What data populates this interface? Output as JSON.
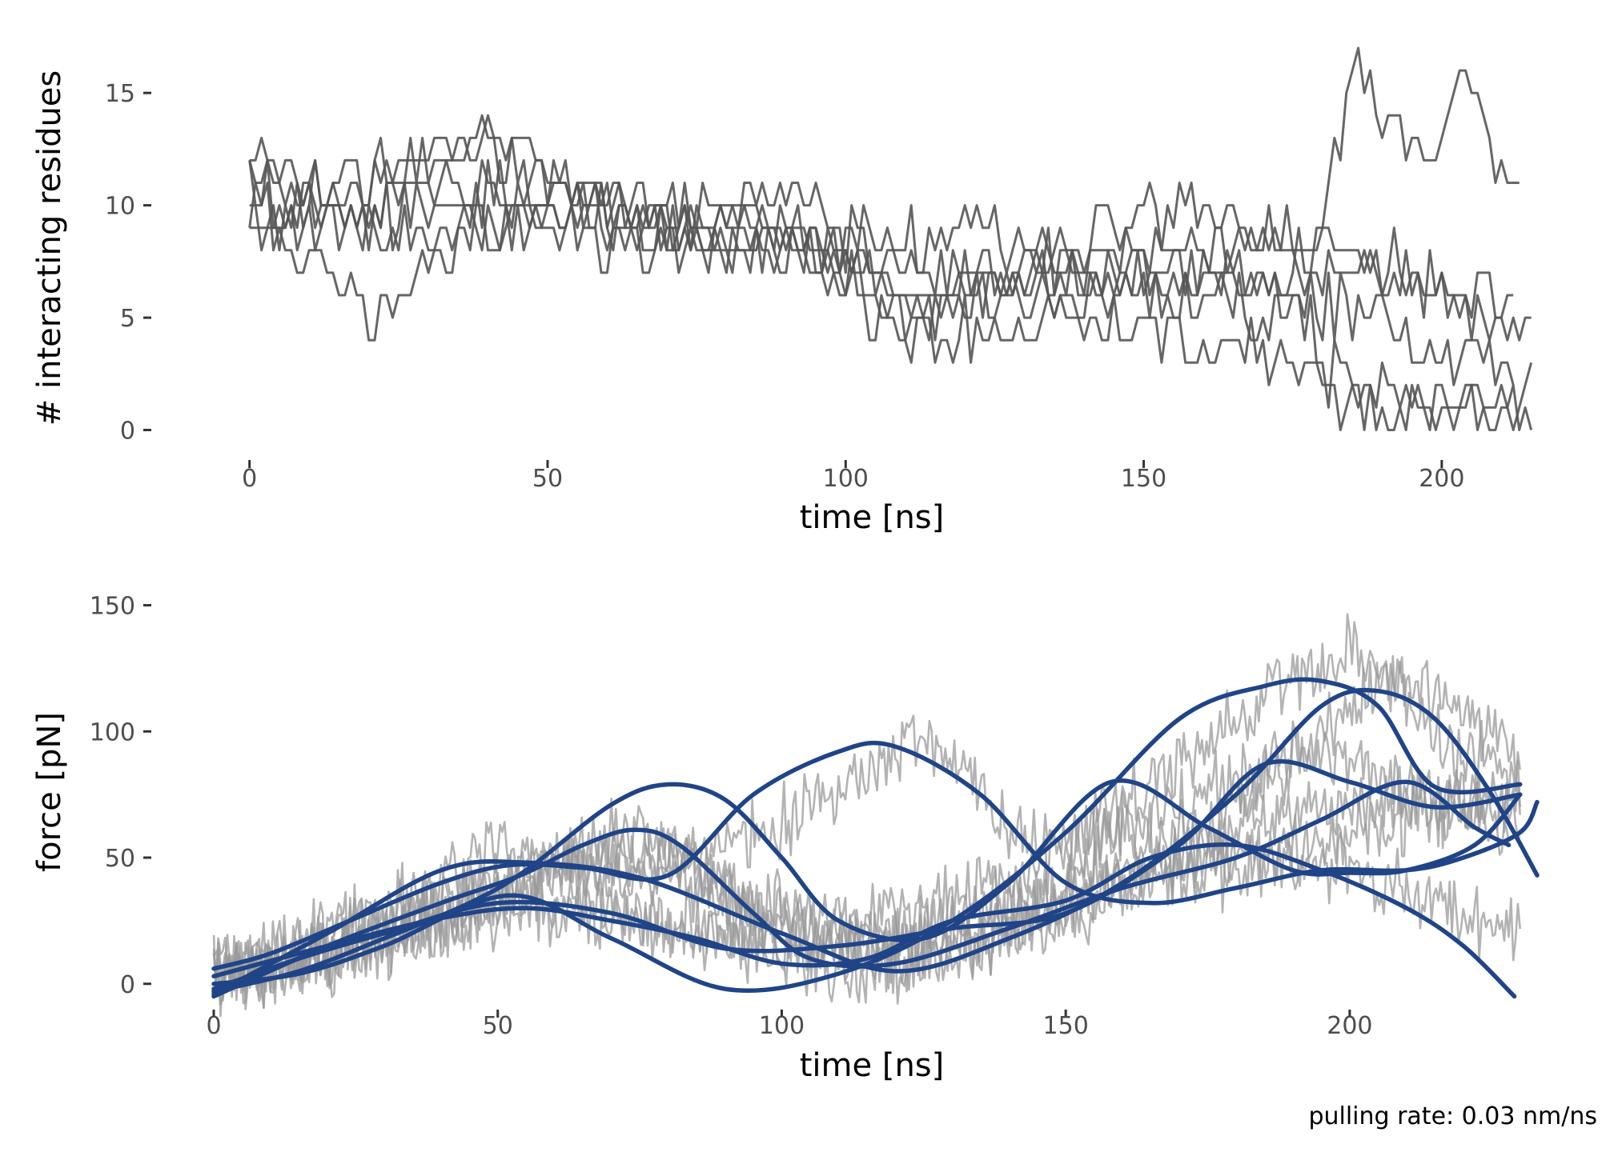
{
  "caption": "pulling rate: 0.03 nm/ns",
  "colors": {
    "trace": "#555555",
    "raw_force": "#999999",
    "smooth_force": "#1f4488",
    "tick_text": "#4d4d4d"
  },
  "chart_data": [
    {
      "type": "line",
      "title": "",
      "xlabel": "time [ns]",
      "ylabel": "# interacting residues",
      "xlim": [
        -6,
        216
      ],
      "ylim": [
        -0.8,
        17
      ],
      "xticks": [
        0,
        50,
        100,
        150,
        200
      ],
      "yticks": [
        0,
        5,
        10,
        15
      ],
      "xtick_labels": [
        "0",
        "50",
        "100",
        "150",
        "200"
      ],
      "ytick_labels": [
        "0",
        "5",
        "10",
        "15"
      ],
      "grid": false,
      "legend": "none",
      "series": [
        {
          "x": [
            0,
            20,
            40,
            60,
            80,
            100,
            110,
            130,
            150,
            170,
            180,
            190,
            200,
            212
          ],
          "y": [
            9,
            11,
            13,
            9,
            8,
            7,
            5,
            6,
            7,
            7,
            6,
            5,
            3,
            3
          ]
        },
        {
          "x": [
            0,
            10,
            30,
            50,
            70,
            90,
            110,
            130,
            150,
            170,
            180,
            190,
            200,
            215
          ],
          "y": [
            10,
            9,
            10,
            11,
            10,
            9,
            7,
            7,
            8,
            8,
            7,
            7,
            6,
            4
          ]
        },
        {
          "x": [
            0,
            10,
            20,
            40,
            60,
            80,
            100,
            120,
            140,
            160,
            175,
            180,
            200,
            215
          ],
          "y": [
            11,
            7,
            5,
            9,
            10,
            8,
            8,
            9,
            7,
            6,
            6,
            3,
            1,
            1
          ]
        },
        {
          "x": [
            0,
            15,
            30,
            50,
            70,
            90,
            110,
            130,
            150,
            170,
            180,
            185,
            195,
            205,
            213
          ],
          "y": [
            12,
            10,
            8,
            10,
            9,
            11,
            6,
            7,
            6,
            5,
            9,
            17,
            11,
            15,
            10
          ]
        },
        {
          "x": [
            0,
            15,
            30,
            50,
            70,
            90,
            105,
            115,
            135,
            155,
            175,
            180,
            195,
            210,
            215
          ],
          "y": [
            10,
            11,
            12,
            9,
            8,
            10,
            5,
            4,
            5,
            4,
            3,
            2,
            1,
            1,
            0
          ]
        },
        {
          "x": [
            0,
            20,
            40,
            60,
            80,
            100,
            110,
            130,
            150,
            170,
            185,
            200,
            212
          ],
          "y": [
            11,
            9,
            13,
            10,
            9,
            8,
            5,
            7,
            10,
            9,
            8,
            6,
            6
          ]
        }
      ]
    },
    {
      "type": "line",
      "title": "",
      "xlabel": "time [ns]",
      "ylabel": "force [pN]",
      "xlim": [
        0,
        233
      ],
      "ylim": [
        -8,
        160
      ],
      "xticks": [
        0,
        50,
        100,
        150,
        200
      ],
      "yticks": [
        0,
        50,
        100,
        150
      ],
      "xtick_labels": [
        "0",
        "50",
        "100",
        "150",
        "200"
      ],
      "ytick_labels": [
        "0",
        "50",
        "100",
        "150"
      ],
      "grid": false,
      "legend": "none",
      "series": [
        {
          "x": [
            0,
            15,
            30,
            45,
            55,
            65,
            75,
            80,
            90,
            105,
            120,
            135,
            150,
            160,
            175,
            190,
            200,
            215,
            230
          ],
          "y": [
            5,
            8,
            18,
            28,
            40,
            52,
            60,
            57,
            35,
            15,
            15,
            22,
            32,
            42,
            55,
            68,
            72,
            70,
            75
          ]
        },
        {
          "x": [
            0,
            10,
            20,
            30,
            40,
            50,
            60,
            70,
            80,
            90,
            100,
            120,
            140,
            155,
            170,
            185,
            200,
            215,
            228
          ],
          "y": [
            5,
            10,
            20,
            28,
            35,
            42,
            48,
            45,
            42,
            35,
            25,
            25,
            42,
            55,
            70,
            85,
            88,
            70,
            60
          ]
        },
        {
          "x": [
            0,
            15,
            30,
            45,
            55,
            65,
            80,
            100,
            120,
            140,
            150,
            160,
            175,
            185,
            195,
            205,
            215,
            230
          ],
          "y": [
            5,
            6,
            15,
            30,
            40,
            50,
            52,
            30,
            10,
            20,
            45,
            60,
            60,
            80,
            100,
            120,
            118,
            90
          ]
        },
        {
          "x": [
            0,
            20,
            40,
            55,
            70,
            90,
            110,
            130,
            150,
            160,
            180,
            195,
            210,
            220,
            230
          ],
          "y": [
            3,
            10,
            28,
            35,
            28,
            15,
            5,
            10,
            25,
            40,
            48,
            55,
            65,
            75,
            68
          ]
        },
        {
          "x": [
            0,
            20,
            40,
            60,
            80,
            100,
            120,
            140,
            160,
            180,
            190,
            200,
            215,
            230
          ],
          "y": [
            2,
            12,
            22,
            30,
            25,
            15,
            20,
            30,
            45,
            45,
            48,
            45,
            35,
            15
          ]
        },
        {
          "x": [
            0,
            20,
            40,
            55,
            70,
            90,
            110,
            125,
            140,
            150,
            165,
            185,
            200,
            215,
            230
          ],
          "y": [
            4,
            18,
            40,
            55,
            45,
            55,
            75,
            100,
            60,
            55,
            80,
            110,
            135,
            100,
            80
          ]
        }
      ],
      "smooth_series": [
        {
          "x": [
            0,
            20,
            40,
            54,
            65,
            74,
            82,
            95,
            105,
            120,
            140,
            160,
            180,
            195,
            210,
            222,
            228
          ],
          "y": [
            -5,
            15,
            32,
            43,
            55,
            61,
            55,
            28,
            10,
            8,
            22,
            38,
            50,
            65,
            80,
            62,
            55
          ]
        },
        {
          "x": [
            0,
            15,
            30,
            45,
            55,
            70,
            80,
            90,
            100,
            110,
            125,
            140,
            158,
            175,
            190,
            200,
            210,
            222,
            230
          ],
          "y": [
            -3,
            5,
            18,
            32,
            45,
            71,
            79,
            73,
            50,
            25,
            18,
            40,
            80,
            62,
            45,
            44,
            45,
            55,
            75
          ]
        },
        {
          "x": [
            0,
            10,
            25,
            40,
            52,
            65,
            80,
            95,
            110,
            120,
            135,
            150,
            165,
            180,
            195,
            210,
            220,
            230,
            233
          ],
          "y": [
            6,
            12,
            26,
            40,
            47,
            46,
            43,
            75,
            92,
            94,
            75,
            40,
            32,
            38,
            45,
            45,
            50,
            60,
            72
          ]
        },
        {
          "x": [
            0,
            20,
            40,
            55,
            75,
            100,
            120,
            140,
            160,
            180,
            195,
            205,
            215,
            225,
            233
          ],
          "y": [
            -4,
            20,
            45,
            48,
            42,
            20,
            5,
            18,
            40,
            75,
            110,
            116,
            105,
            75,
            43
          ]
        },
        {
          "x": [
            0,
            15,
            30,
            50,
            70,
            90,
            110,
            130,
            150,
            170,
            185,
            200,
            215,
            230
          ],
          "y": [
            -2,
            10,
            20,
            32,
            28,
            14,
            15,
            22,
            28,
            55,
            87,
            80,
            70,
            75
          ]
        },
        {
          "x": [
            0,
            15,
            30,
            52,
            70,
            90,
            110,
            130,
            150,
            170,
            185,
            195,
            205,
            215,
            230
          ],
          "y": [
            0,
            4,
            15,
            35,
            18,
            -2,
            4,
            25,
            60,
            105,
            118,
            120,
            110,
            78,
            79
          ]
        },
        {
          "x": [
            0,
            20,
            40,
            55,
            70,
            85,
            100,
            115,
            130,
            150,
            165,
            180,
            195,
            210,
            220,
            229
          ],
          "y": [
            3,
            15,
            26,
            30,
            25,
            18,
            8,
            10,
            25,
            33,
            50,
            55,
            45,
            30,
            15,
            -5
          ]
        }
      ]
    }
  ]
}
